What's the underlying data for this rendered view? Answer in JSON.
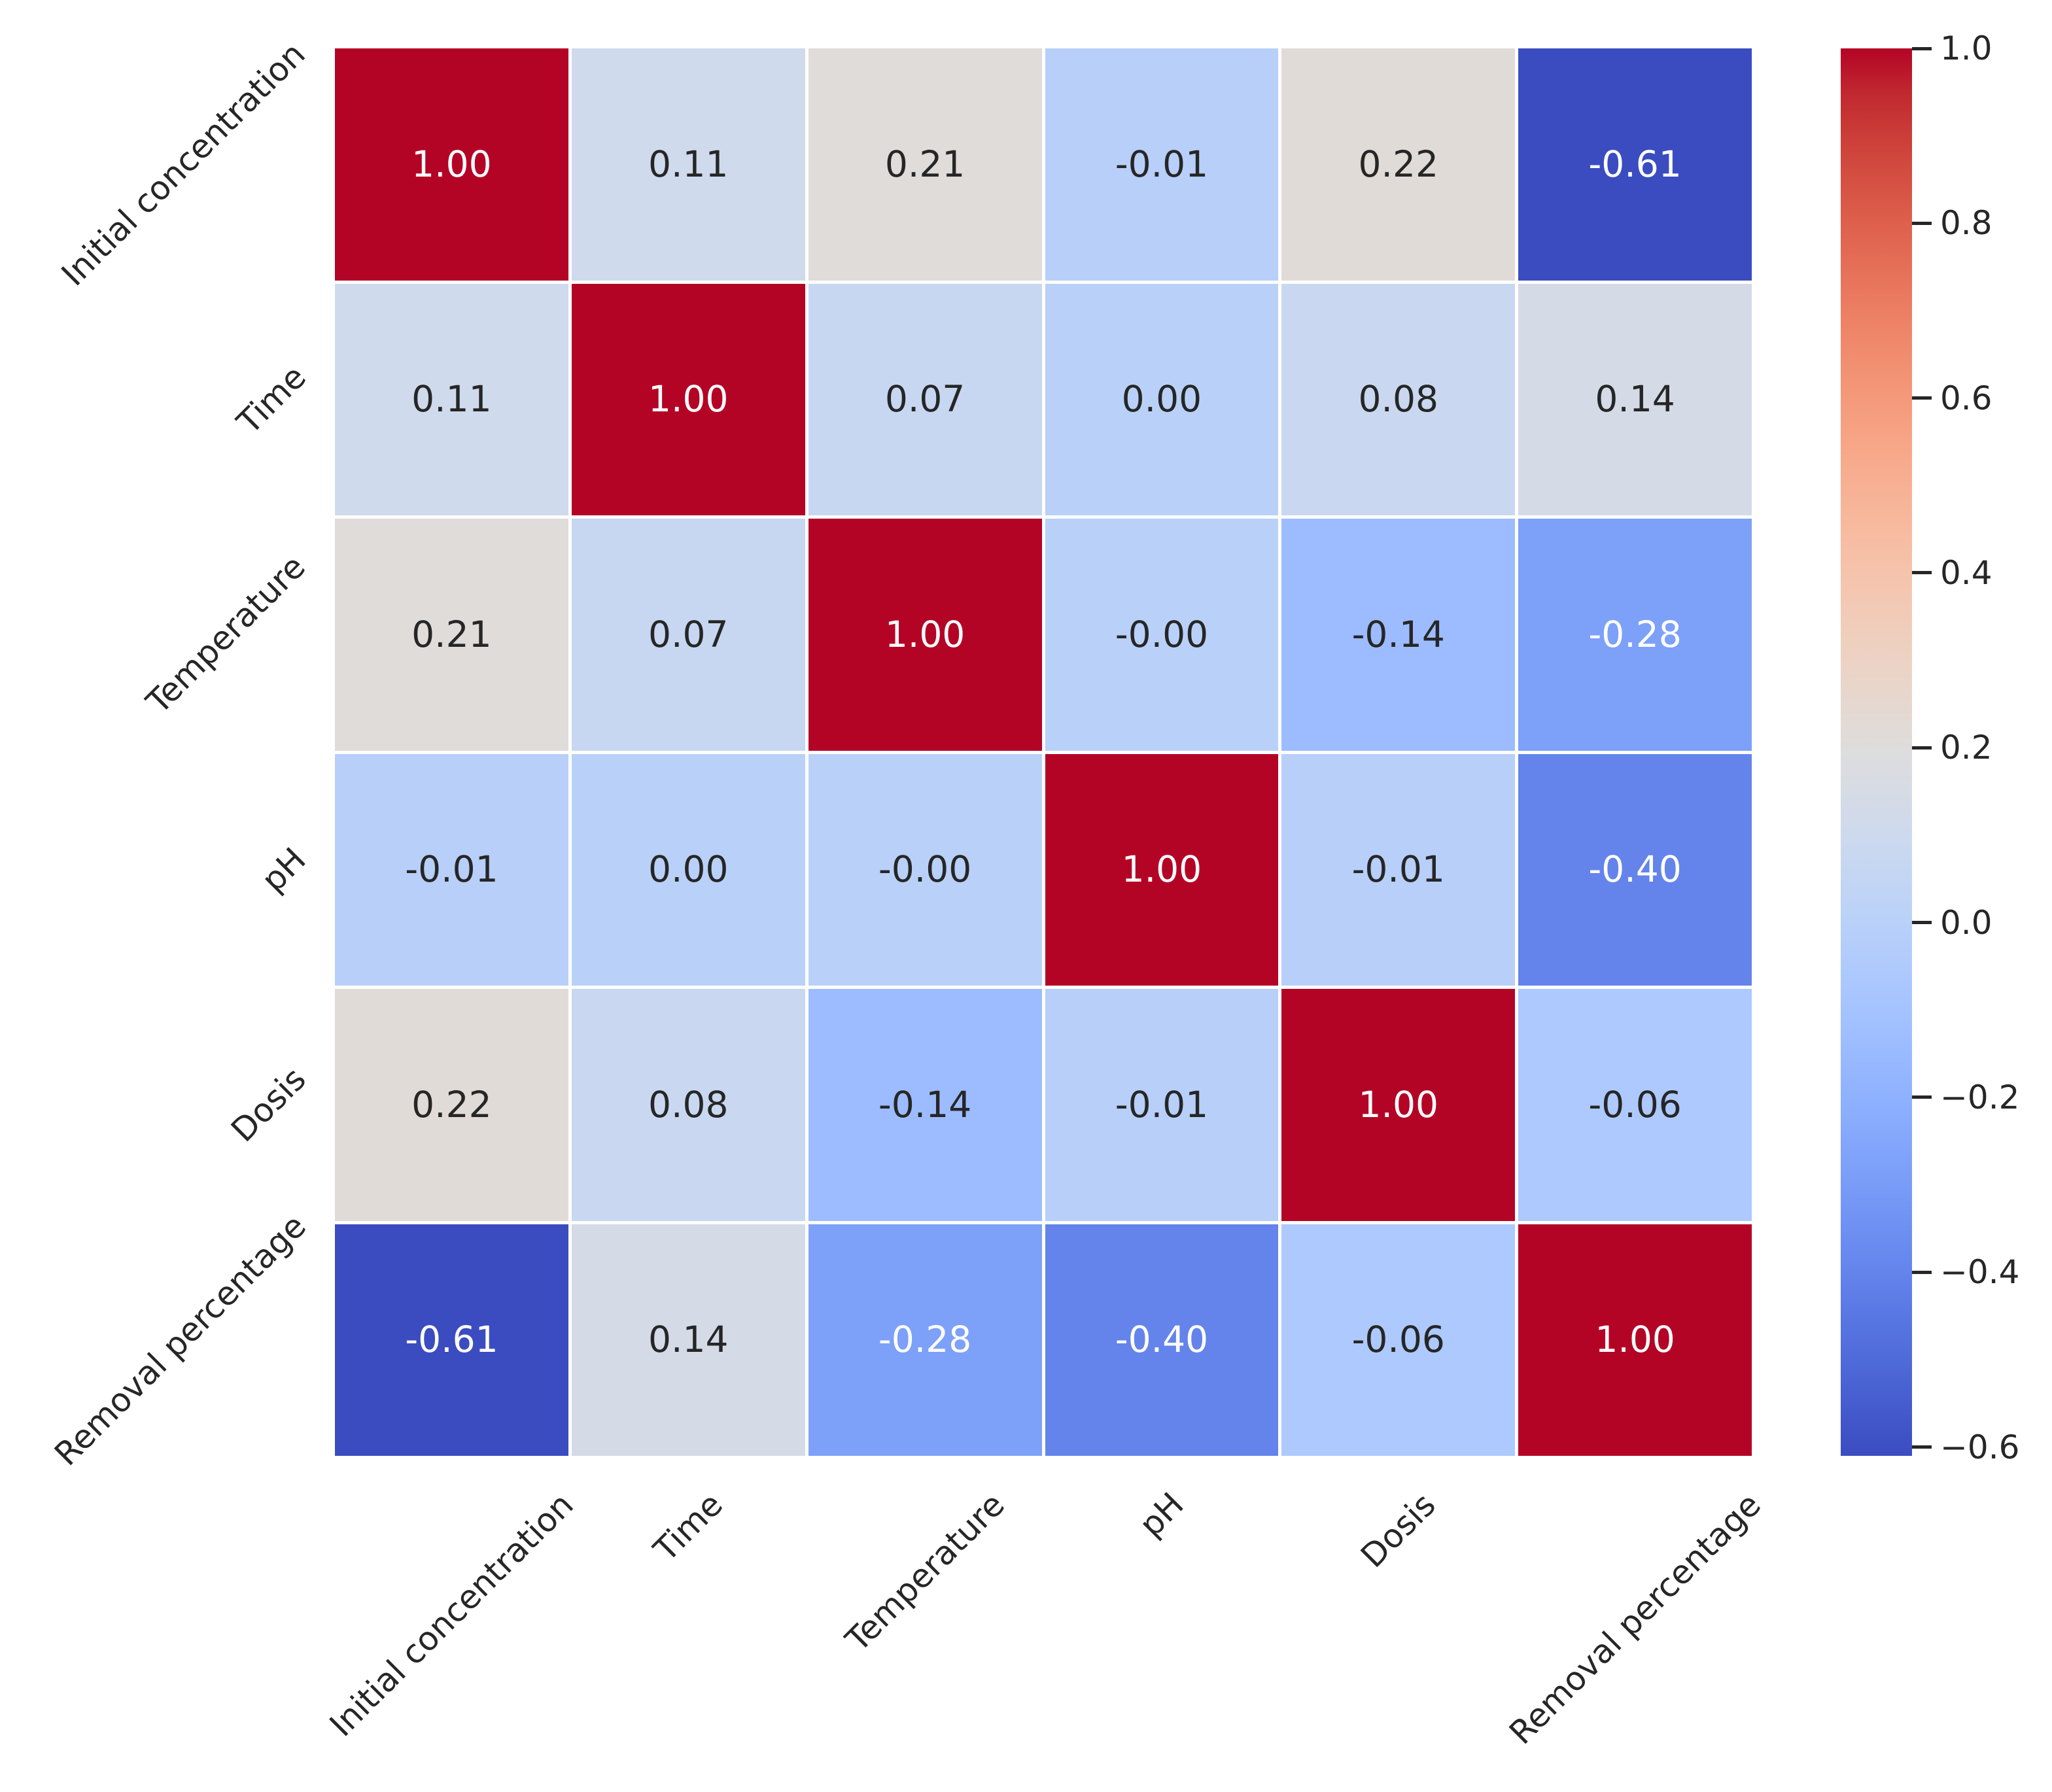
{
  "chart_data": {
    "type": "heatmap",
    "title": "",
    "colormap": "coolwarm",
    "vmin": -0.61,
    "vmax": 1.0,
    "grid_line_color": "#ffffff",
    "annotation_color_dark": "#262626",
    "annotation_color_light": "#ffffff",
    "tick_color": "#262626",
    "variables": [
      "Initial concentration",
      "Time",
      "Temperature",
      "pH",
      "Dosis",
      "Removal percentage"
    ],
    "y_tick_labels": [
      "Initial concentration",
      "Time",
      "Temperature",
      "pH",
      "Dosis",
      "Removal percentage"
    ],
    "x_tick_labels": [
      "Initial concentration",
      "Time",
      "Temperature",
      "pH",
      "Dosis",
      "Removal percentage"
    ],
    "matrix_labels": [
      [
        "1.00",
        "0.11",
        "0.21",
        "-0.01",
        "0.22",
        "-0.61"
      ],
      [
        "0.11",
        "1.00",
        "0.07",
        "0.00",
        "0.08",
        "0.14"
      ],
      [
        "0.21",
        "0.07",
        "1.00",
        "-0.00",
        "-0.14",
        "-0.28"
      ],
      [
        "-0.01",
        "0.00",
        "-0.00",
        "1.00",
        "-0.01",
        "-0.40"
      ],
      [
        "0.22",
        "0.08",
        "-0.14",
        "-0.01",
        "1.00",
        "-0.06"
      ],
      [
        "-0.61",
        "0.14",
        "-0.28",
        "-0.40",
        "-0.06",
        "1.00"
      ]
    ],
    "matrix_values": [
      [
        1.0,
        0.11,
        0.21,
        -0.01,
        0.22,
        -0.61
      ],
      [
        0.11,
        1.0,
        0.07,
        0.0,
        0.08,
        0.14
      ],
      [
        0.21,
        0.07,
        1.0,
        -0.0,
        -0.14,
        -0.28
      ],
      [
        -0.01,
        0.0,
        -0.0,
        1.0,
        -0.01,
        -0.4
      ],
      [
        0.22,
        0.08,
        -0.14,
        -0.01,
        1.0,
        -0.06
      ],
      [
        -0.61,
        0.14,
        -0.28,
        -0.4,
        -0.06,
        1.0
      ]
    ],
    "colorbar": {
      "tick_labels": [
        "1.0",
        "0.8",
        "0.6",
        "0.4",
        "0.2",
        "0.0",
        "−0.2",
        "−0.4",
        "−0.6"
      ],
      "tick_values": [
        1.0,
        0.8,
        0.6,
        0.4,
        0.2,
        0.0,
        -0.2,
        -0.4,
        -0.6
      ]
    }
  }
}
